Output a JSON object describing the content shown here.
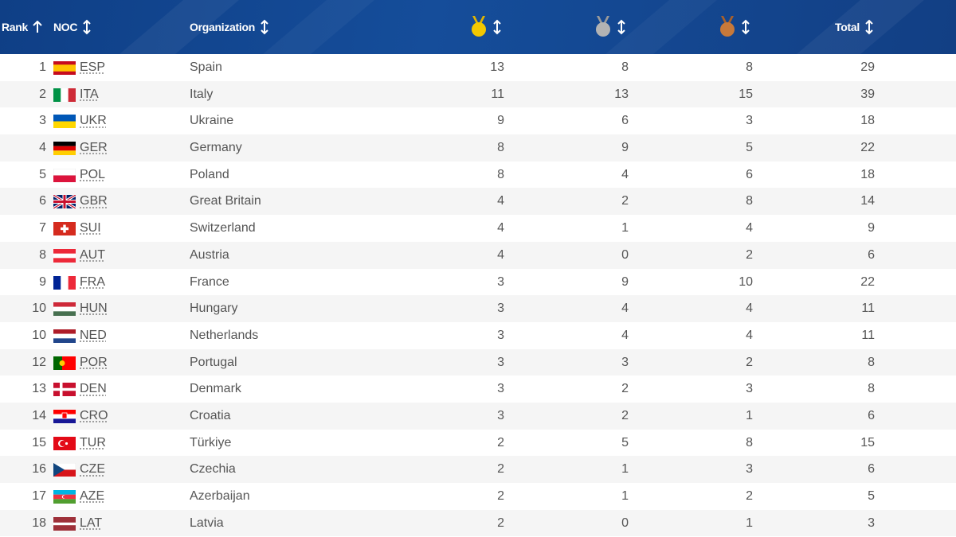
{
  "header": {
    "rank": "Rank",
    "noc": "NOC",
    "organization": "Organization",
    "total": "Total",
    "gold_icon": "gold-medal-icon",
    "silver_icon": "silver-medal-icon",
    "bronze_icon": "bronze-medal-icon",
    "colors": {
      "gold": "#f3c800",
      "silver": "#b3b3b3",
      "bronze": "#c7793a",
      "header_bg": "#154d9a"
    }
  },
  "rows": [
    {
      "rank": "1",
      "code": "ESP",
      "name": "Spain",
      "gold": "13",
      "silver": "8",
      "bronze": "8",
      "total": "29",
      "flag": "esp"
    },
    {
      "rank": "2",
      "code": "ITA",
      "name": "Italy",
      "gold": "11",
      "silver": "13",
      "bronze": "15",
      "total": "39",
      "flag": "ita"
    },
    {
      "rank": "3",
      "code": "UKR",
      "name": "Ukraine",
      "gold": "9",
      "silver": "6",
      "bronze": "3",
      "total": "18",
      "flag": "ukr"
    },
    {
      "rank": "4",
      "code": "GER",
      "name": "Germany",
      "gold": "8",
      "silver": "9",
      "bronze": "5",
      "total": "22",
      "flag": "ger"
    },
    {
      "rank": "5",
      "code": "POL",
      "name": "Poland",
      "gold": "8",
      "silver": "4",
      "bronze": "6",
      "total": "18",
      "flag": "pol"
    },
    {
      "rank": "6",
      "code": "GBR",
      "name": "Great Britain",
      "gold": "4",
      "silver": "2",
      "bronze": "8",
      "total": "14",
      "flag": "gbr"
    },
    {
      "rank": "7",
      "code": "SUI",
      "name": "Switzerland",
      "gold": "4",
      "silver": "1",
      "bronze": "4",
      "total": "9",
      "flag": "sui"
    },
    {
      "rank": "8",
      "code": "AUT",
      "name": "Austria",
      "gold": "4",
      "silver": "0",
      "bronze": "2",
      "total": "6",
      "flag": "aut"
    },
    {
      "rank": "9",
      "code": "FRA",
      "name": "France",
      "gold": "3",
      "silver": "9",
      "bronze": "10",
      "total": "22",
      "flag": "fra"
    },
    {
      "rank": "10",
      "code": "HUN",
      "name": "Hungary",
      "gold": "3",
      "silver": "4",
      "bronze": "4",
      "total": "11",
      "flag": "hun"
    },
    {
      "rank": "10",
      "code": "NED",
      "name": "Netherlands",
      "gold": "3",
      "silver": "4",
      "bronze": "4",
      "total": "11",
      "flag": "ned"
    },
    {
      "rank": "12",
      "code": "POR",
      "name": "Portugal",
      "gold": "3",
      "silver": "3",
      "bronze": "2",
      "total": "8",
      "flag": "por"
    },
    {
      "rank": "13",
      "code": "DEN",
      "name": "Denmark",
      "gold": "3",
      "silver": "2",
      "bronze": "3",
      "total": "8",
      "flag": "den"
    },
    {
      "rank": "14",
      "code": "CRO",
      "name": "Croatia",
      "gold": "3",
      "silver": "2",
      "bronze": "1",
      "total": "6",
      "flag": "cro"
    },
    {
      "rank": "15",
      "code": "TUR",
      "name": "Türkiye",
      "gold": "2",
      "silver": "5",
      "bronze": "8",
      "total": "15",
      "flag": "tur"
    },
    {
      "rank": "16",
      "code": "CZE",
      "name": "Czechia",
      "gold": "2",
      "silver": "1",
      "bronze": "3",
      "total": "6",
      "flag": "cze"
    },
    {
      "rank": "17",
      "code": "AZE",
      "name": "Azerbaijan",
      "gold": "2",
      "silver": "1",
      "bronze": "2",
      "total": "5",
      "flag": "aze"
    },
    {
      "rank": "18",
      "code": "LAT",
      "name": "Latvia",
      "gold": "2",
      "silver": "0",
      "bronze": "1",
      "total": "3",
      "flag": "lat"
    }
  ]
}
